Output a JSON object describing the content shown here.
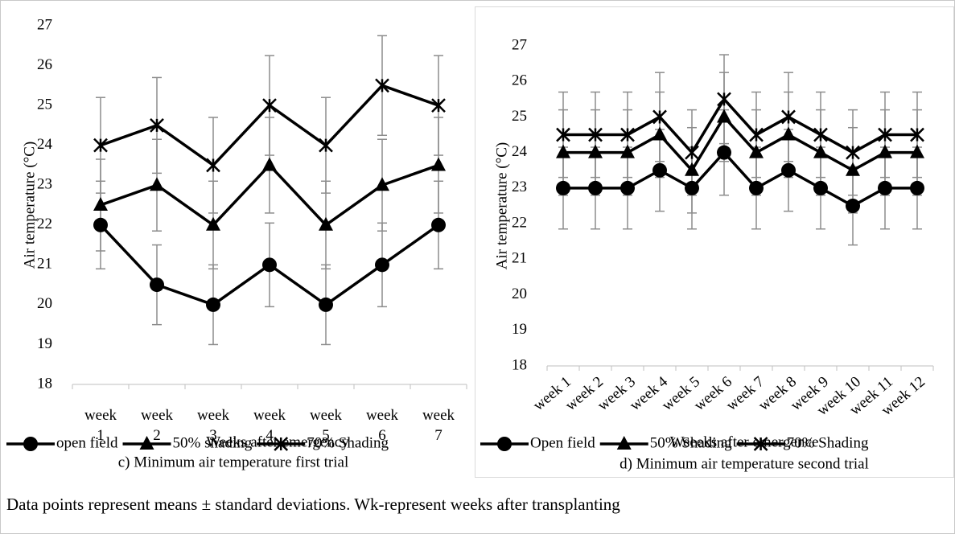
{
  "chart_data": [
    {
      "type": "line",
      "ylabel": "Air temperature (°C)",
      "xlabel": "Weeks after emergency",
      "caption": "c) Minimum air temperature first trial",
      "categories": [
        "week 1",
        "week 2",
        "week 3",
        "week 4",
        "week 5",
        "week 6",
        "week 7"
      ],
      "ylim": [
        18,
        27
      ],
      "yticks": [
        18,
        19,
        20,
        21,
        22,
        23,
        24,
        25,
        26,
        27
      ],
      "grid": false,
      "series": [
        {
          "name": "open field",
          "color": "#000000",
          "marker": "circle",
          "values": [
            22,
            20.5,
            20,
            21,
            20,
            21,
            22
          ],
          "errors": [
            1.1,
            1,
            1,
            1.05,
            1,
            1.05,
            1.1
          ]
        },
        {
          "name": "50% shading",
          "color": "#000000",
          "marker": "triangle",
          "values": [
            22.5,
            23,
            22,
            23.5,
            22,
            23,
            23.5
          ],
          "errors": [
            1.15,
            1.15,
            1.1,
            1.2,
            1.1,
            1.15,
            1.2
          ]
        },
        {
          "name": "70% Shading",
          "color": "#000000",
          "marker": "asterisk",
          "values": [
            24,
            24.5,
            23.5,
            25,
            24,
            25.5,
            25
          ],
          "errors": [
            1.2,
            1.2,
            1.2,
            1.25,
            1.2,
            1.25,
            1.25
          ]
        }
      ]
    },
    {
      "type": "line",
      "ylabel": "Air temperature (°C)",
      "xlabel": "Weeeks after emergence",
      "caption": "d) Minimum air temperature second trial",
      "categories": [
        "week 1",
        "week 2",
        "week 3",
        "week 4",
        "week 5",
        "week 6",
        "week 7",
        "week 8",
        "week 9",
        "week 10",
        "week 11",
        "week 12"
      ],
      "ylim": [
        18,
        27
      ],
      "yticks": [
        18,
        19,
        20,
        21,
        22,
        23,
        24,
        25,
        26,
        27
      ],
      "grid": false,
      "series": [
        {
          "name": "Open field",
          "color": "#000000",
          "marker": "circle",
          "values": [
            23,
            23,
            23,
            23.5,
            23,
            24,
            23,
            23.5,
            23,
            22.5,
            23,
            23
          ],
          "errors": [
            1.15,
            1.15,
            1.15,
            1.15,
            1.15,
            1.2,
            1.15,
            1.15,
            1.15,
            1.1,
            1.15,
            1.15
          ]
        },
        {
          "name": "50% Shading",
          "color": "#000000",
          "marker": "triangle",
          "values": [
            24,
            24,
            24,
            24.5,
            23.5,
            25,
            24,
            24.5,
            24,
            23.5,
            24,
            24
          ],
          "errors": [
            1.2,
            1.2,
            1.2,
            1.2,
            1.2,
            1.25,
            1.2,
            1.2,
            1.2,
            1.2,
            1.2,
            1.2
          ]
        },
        {
          "name": "70% Shading",
          "color": "#000000",
          "marker": "asterisk",
          "values": [
            24.5,
            24.5,
            24.5,
            25,
            24,
            25.5,
            24.5,
            25,
            24.5,
            24,
            24.5,
            24.5
          ],
          "errors": [
            1.2,
            1.2,
            1.2,
            1.25,
            1.2,
            1.25,
            1.2,
            1.25,
            1.2,
            1.2,
            1.2,
            1.2
          ]
        }
      ]
    }
  ],
  "note": "Data points represent means ± standard deviations. Wk-represent weeks after transplanting"
}
